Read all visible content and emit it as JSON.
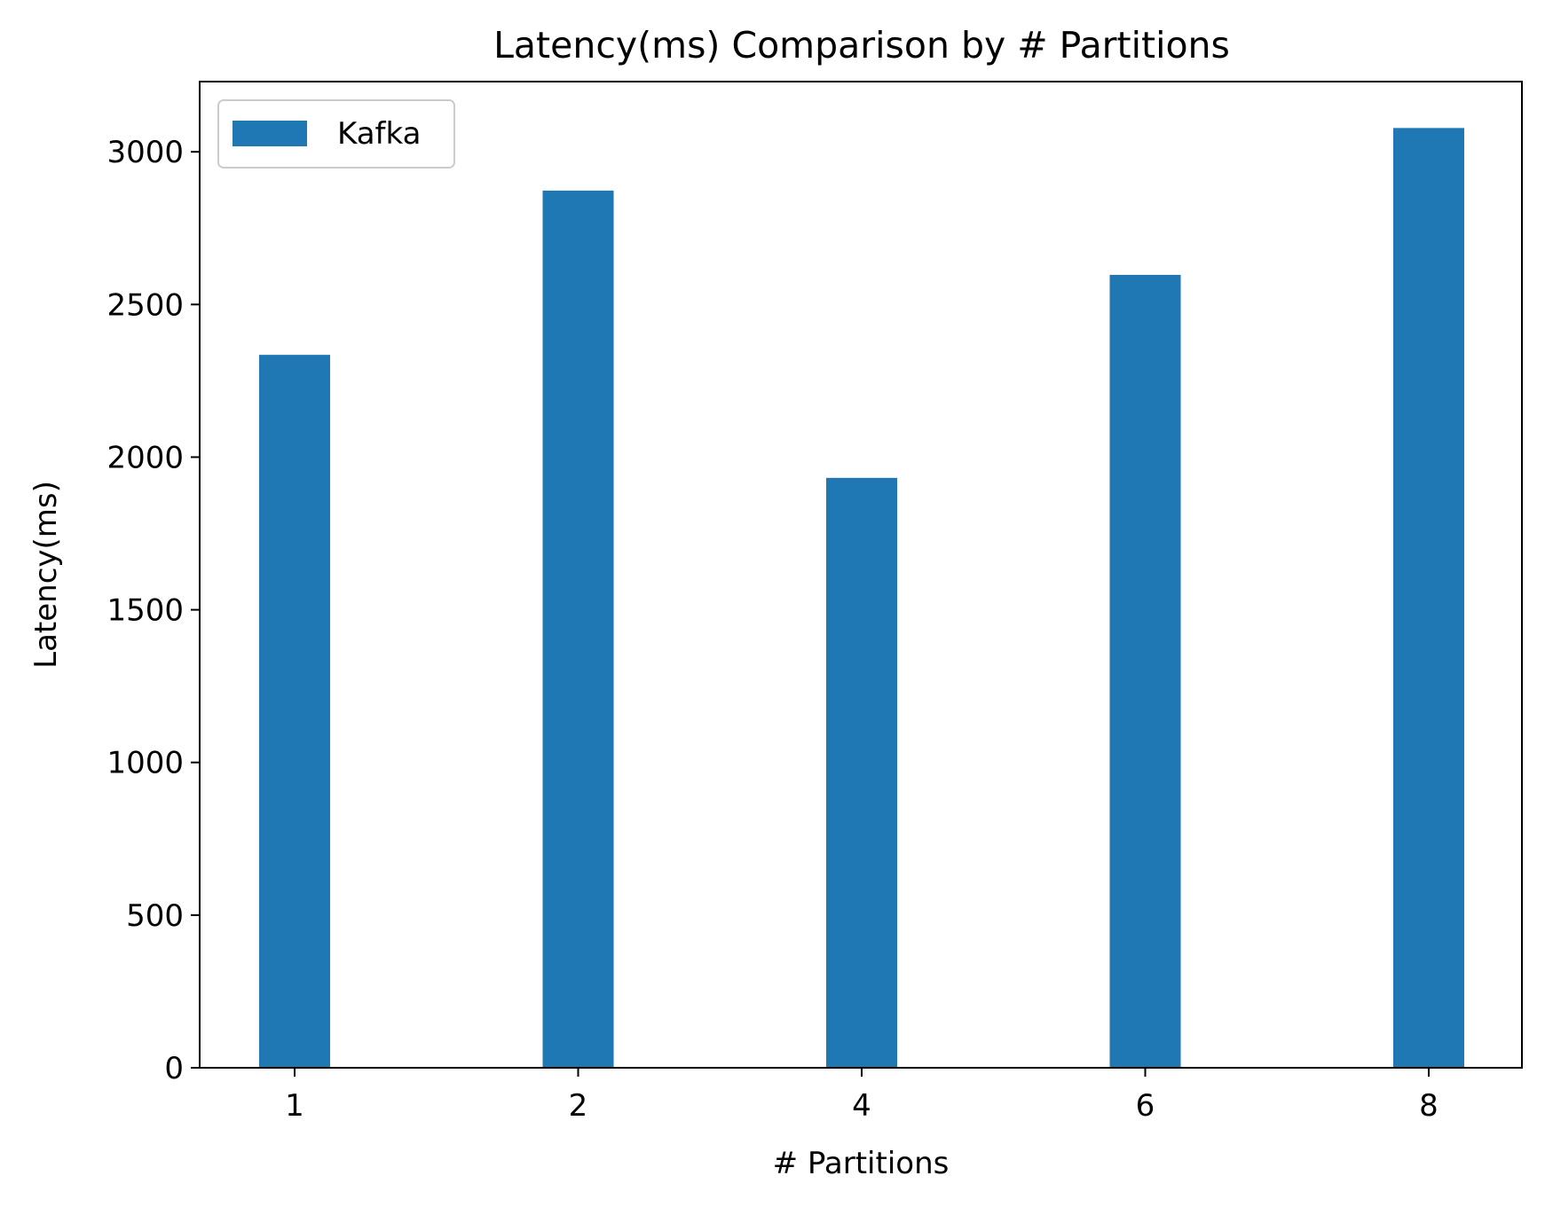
{
  "chart_data": {
    "type": "bar",
    "title": "Latency(ms) Comparison by # Partitions",
    "xlabel": "# Partitions",
    "ylabel": "Latency(ms)",
    "categories": [
      "1",
      "2",
      "4",
      "6",
      "8"
    ],
    "series": [
      {
        "name": "Kafka",
        "color": "#1f77b4",
        "values": [
          2335,
          2873,
          1932,
          2597,
          3078
        ]
      }
    ],
    "ylim": [
      0,
      3230
    ],
    "yticks": [
      0,
      500,
      1000,
      1500,
      2000,
      2500,
      3000
    ],
    "grid": false,
    "legend_position": "top-left"
  }
}
